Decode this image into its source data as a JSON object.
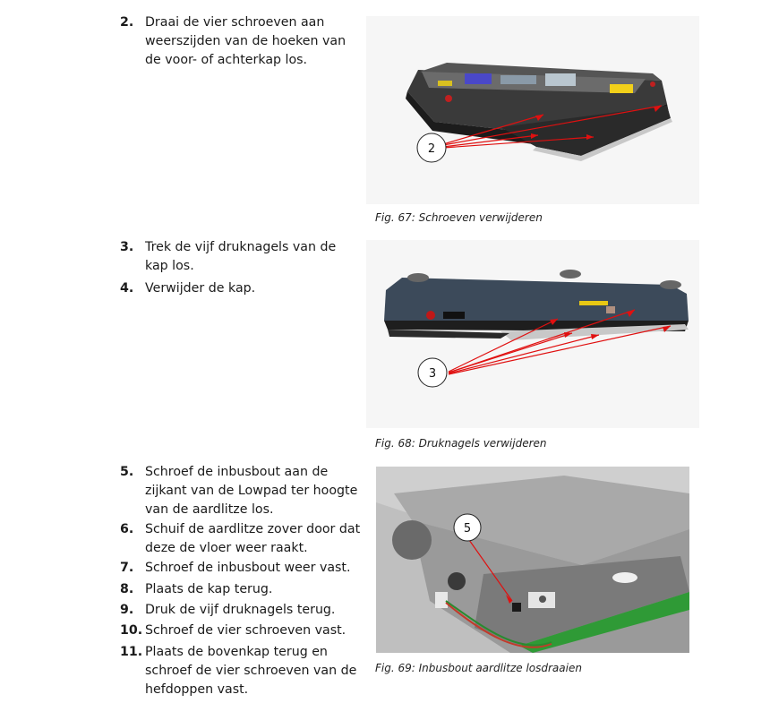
{
  "steps": [
    {
      "num": "2.",
      "text": "Draai de vier schroeven aan weerszijden van de hoeken van de voor- of achterkap los."
    },
    {
      "num": "3.",
      "text": "Trek de vijf druknagels van de kap los."
    },
    {
      "num": "4.",
      "text": "Verwijder de kap."
    },
    {
      "num": "5.",
      "text": "Schroef de inbusbout aan de zijkant van de Lowpad ter hoogte van de aardlitze los."
    },
    {
      "num": "6.",
      "text": "Schuif de aardlitze zover door dat deze de vloer weer raakt."
    },
    {
      "num": "7.",
      "text": "Schroef de inbusbout weer vast."
    },
    {
      "num": "8.",
      "text": "Plaats de kap terug."
    },
    {
      "num": "9.",
      "text": "Druk de vijf druknagels terug."
    },
    {
      "num": "10.",
      "text": "Schroef de vier schroeven vast."
    },
    {
      "num": "11.",
      "text": "Plaats de bovenkap terug en schroef de vier schroeven van de hefdoppen vast."
    }
  ],
  "figures": [
    {
      "caption": "Fig. 67: Schroeven verwijderen",
      "callout": "2"
    },
    {
      "caption": "Fig. 68: Druknagels verwijderen",
      "callout": "3"
    },
    {
      "caption": "Fig. 69: Inbusbout aardlitze losdraaien",
      "callout": "5"
    }
  ]
}
